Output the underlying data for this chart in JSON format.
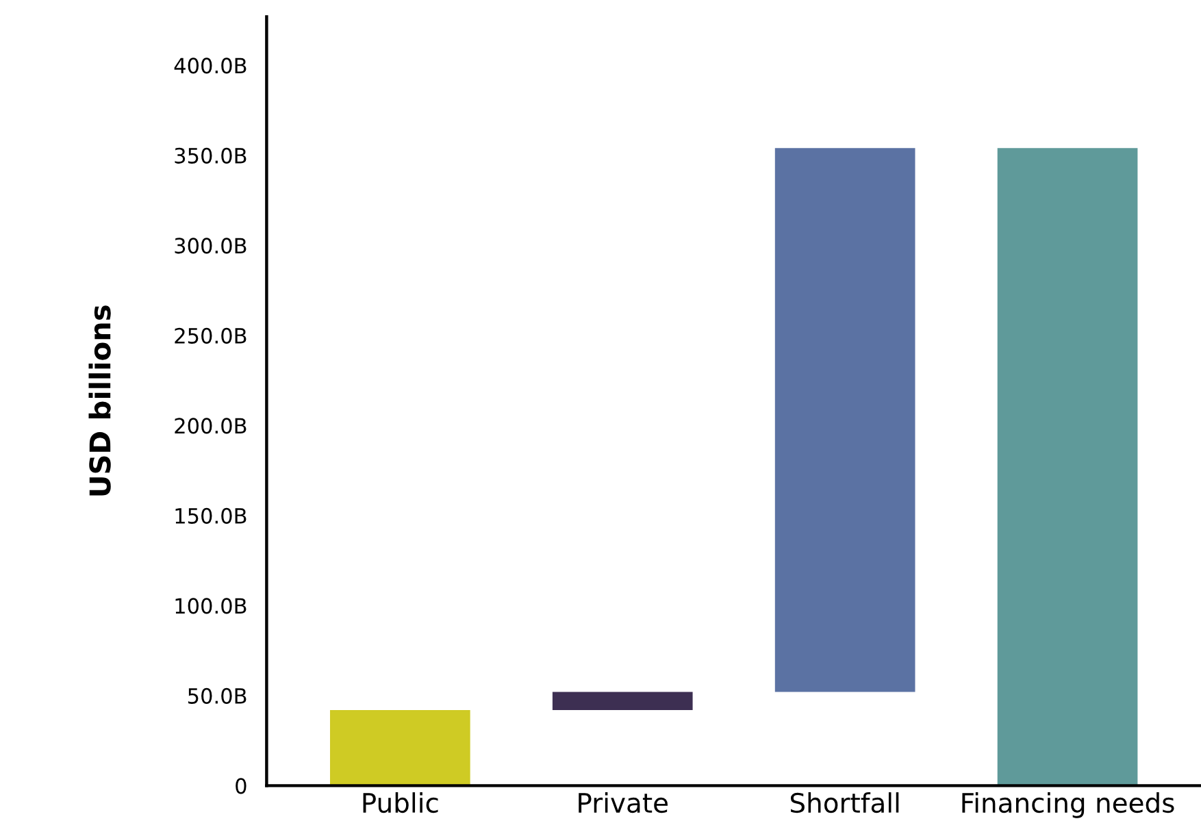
{
  "chart_data": {
    "type": "bar",
    "ylabel": "USD billions",
    "categories": [
      "Public",
      "Private",
      "Shortfall",
      "Financing needs"
    ],
    "values": [
      42,
      10,
      302,
      354
    ],
    "base": [
      0,
      42,
      52,
      0
    ],
    "colors": [
      "#cfcb24",
      "#3d2f52",
      "#5b72a3",
      "#5f9a9a"
    ],
    "ylim": [
      0,
      427
    ],
    "yticks": [
      {
        "value": 0,
        "label": "0"
      },
      {
        "value": 50,
        "label": "50.0B"
      },
      {
        "value": 100,
        "label": "100.0B"
      },
      {
        "value": 150,
        "label": "150.0B"
      },
      {
        "value": 200,
        "label": "200.0B"
      },
      {
        "value": 250,
        "label": "250.0B"
      },
      {
        "value": 300,
        "label": "300.0B"
      },
      {
        "value": 350,
        "label": "350.0B"
      },
      {
        "value": 400,
        "label": "400.0B"
      }
    ],
    "grid": false,
    "legend": false
  }
}
